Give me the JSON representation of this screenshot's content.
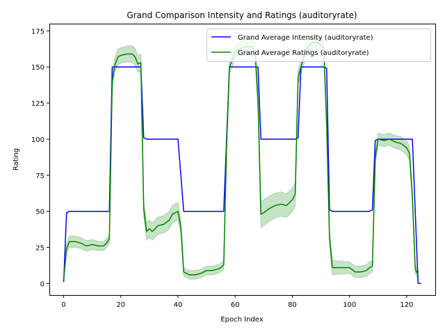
{
  "chart_data": {
    "type": "line",
    "title": "Grand Comparison Intensity and Ratings (auditoryrate)",
    "xlabel": "Epoch Index",
    "ylabel": "Rating",
    "xlim": [
      -5,
      130
    ],
    "ylim": [
      -8,
      180
    ],
    "xticks": [
      0,
      20,
      40,
      60,
      80,
      100,
      120
    ],
    "yticks": [
      0,
      25,
      50,
      75,
      100,
      125,
      150,
      175
    ],
    "legend_position": "top-right",
    "series": [
      {
        "name": "Grand Average Intensity (auditoryrate)",
        "color": "#0000ff",
        "points": [
          [
            0,
            1
          ],
          [
            1,
            49
          ],
          [
            2,
            50
          ],
          [
            16,
            50
          ],
          [
            17,
            150
          ],
          [
            27,
            150
          ],
          [
            28,
            101
          ],
          [
            29,
            100
          ],
          [
            40,
            100
          ],
          [
            42,
            50
          ],
          [
            56,
            50
          ],
          [
            58,
            150
          ],
          [
            68,
            150
          ],
          [
            69,
            100
          ],
          [
            81,
            100
          ],
          [
            82,
            101
          ],
          [
            83,
            150
          ],
          [
            91,
            150
          ],
          [
            92,
            149
          ],
          [
            93,
            51
          ],
          [
            94,
            50
          ],
          [
            107,
            50
          ],
          [
            108,
            51
          ],
          [
            109,
            99
          ],
          [
            110,
            100
          ],
          [
            122,
            100
          ],
          [
            124,
            0
          ],
          [
            125,
            0
          ]
        ]
      },
      {
        "name": "Grand Average Ratings (auditoryrate)",
        "color": "#008000",
        "band_color": "#008000",
        "points": [
          [
            0,
            3
          ],
          [
            1,
            24
          ],
          [
            2,
            29
          ],
          [
            4,
            29
          ],
          [
            6,
            28
          ],
          [
            8,
            26
          ],
          [
            10,
            27
          ],
          [
            12,
            26
          ],
          [
            14,
            26
          ],
          [
            15,
            28
          ],
          [
            16,
            31
          ],
          [
            17,
            140
          ],
          [
            18,
            152
          ],
          [
            19,
            157
          ],
          [
            20,
            158
          ],
          [
            22,
            159
          ],
          [
            24,
            159
          ],
          [
            25,
            157
          ],
          [
            26,
            152
          ],
          [
            27,
            153
          ],
          [
            28,
            52
          ],
          [
            29,
            36
          ],
          [
            30,
            38
          ],
          [
            31,
            36
          ],
          [
            33,
            40
          ],
          [
            35,
            41
          ],
          [
            37,
            44
          ],
          [
            38,
            48
          ],
          [
            40,
            50
          ],
          [
            41,
            39
          ],
          [
            42,
            8
          ],
          [
            44,
            6
          ],
          [
            46,
            6
          ],
          [
            48,
            7
          ],
          [
            50,
            9
          ],
          [
            52,
            9
          ],
          [
            54,
            10
          ],
          [
            55,
            11
          ],
          [
            56,
            13
          ],
          [
            57,
            95
          ],
          [
            58,
            150
          ],
          [
            60,
            160
          ],
          [
            62,
            163
          ],
          [
            64,
            164
          ],
          [
            66,
            164
          ],
          [
            67,
            160
          ],
          [
            68,
            126
          ],
          [
            69,
            48
          ],
          [
            70,
            49
          ],
          [
            72,
            52
          ],
          [
            74,
            54
          ],
          [
            76,
            55
          ],
          [
            78,
            54
          ],
          [
            80,
            58
          ],
          [
            81,
            62
          ],
          [
            82,
            143
          ],
          [
            83,
            150
          ],
          [
            85,
            163
          ],
          [
            87,
            167
          ],
          [
            89,
            167
          ],
          [
            90,
            165
          ],
          [
            91,
            163
          ],
          [
            92,
            110
          ],
          [
            93,
            32
          ],
          [
            94,
            11
          ],
          [
            96,
            11
          ],
          [
            98,
            11
          ],
          [
            100,
            11
          ],
          [
            102,
            8
          ],
          [
            104,
            8
          ],
          [
            106,
            9
          ],
          [
            107,
            11
          ],
          [
            108,
            12
          ],
          [
            109,
            87
          ],
          [
            110,
            100
          ],
          [
            112,
            99
          ],
          [
            114,
            100
          ],
          [
            116,
            98
          ],
          [
            118,
            97
          ],
          [
            120,
            94
          ],
          [
            121,
            90
          ],
          [
            122,
            60
          ],
          [
            123,
            10
          ],
          [
            124,
            6
          ]
        ],
        "band_halfwidth": [
          [
            0,
            1
          ],
          [
            1,
            3
          ],
          [
            2,
            4
          ],
          [
            16,
            3
          ],
          [
            17,
            5
          ],
          [
            27,
            6
          ],
          [
            28,
            5
          ],
          [
            29,
            6
          ],
          [
            40,
            6
          ],
          [
            42,
            3
          ],
          [
            56,
            3
          ],
          [
            57,
            4
          ],
          [
            67,
            6
          ],
          [
            69,
            9
          ],
          [
            81,
            8
          ],
          [
            82,
            5
          ],
          [
            91,
            5
          ],
          [
            92,
            5
          ],
          [
            93,
            5
          ],
          [
            94,
            5
          ],
          [
            100,
            4
          ],
          [
            108,
            4
          ],
          [
            109,
            4
          ],
          [
            110,
            4
          ],
          [
            122,
            5
          ],
          [
            123,
            3
          ],
          [
            124,
            3
          ]
        ]
      }
    ]
  }
}
